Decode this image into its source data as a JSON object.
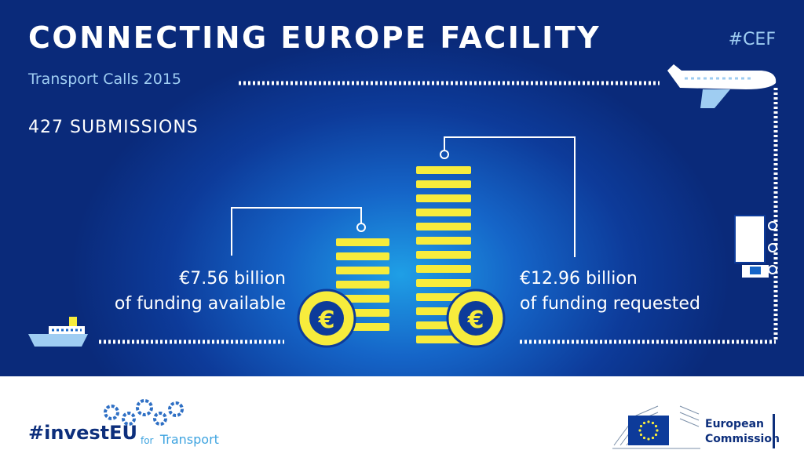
{
  "header": {
    "title": "CONNECTING EUROPE FACILITY",
    "hashtag": "#CEF",
    "subtitle": "Transport Calls 2015"
  },
  "main": {
    "submissions": "427 SUBMISSIONS",
    "available": {
      "amount": "€7.56 billion",
      "caption": "of funding available"
    },
    "requested": {
      "amount": "€12.96 billion",
      "caption": "of funding requested"
    },
    "euro_symbol": "€"
  },
  "footer": {
    "brand_main": "#investEU",
    "brand_for": "for",
    "brand_transport": "Transport",
    "ec_line1": "European",
    "ec_line2": "Commission"
  },
  "colors": {
    "background": "#0d3b9a",
    "coin": "#f7ec3c",
    "accent_text": "#9fcdf2",
    "brand": "#0d2f7c"
  },
  "icons": [
    "airplane-icon",
    "truck-icon",
    "ship-icon",
    "euro-coin-icon",
    "gears-icon",
    "eu-flag-icon"
  ]
}
